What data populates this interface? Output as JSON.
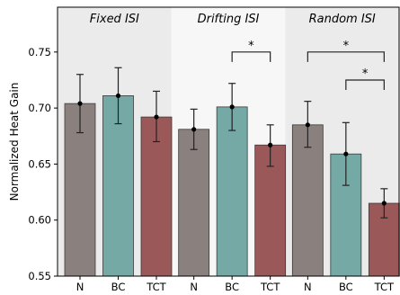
{
  "chart_data": {
    "type": "bar",
    "ylabel": "Normalized Heat Gain",
    "xlabel": "",
    "ylim": [
      0.55,
      0.79
    ],
    "yticks": [
      "0.55",
      "0.60",
      "0.65",
      "0.70",
      "0.75"
    ],
    "grid": false,
    "groups": [
      {
        "label": "Fixed ISI",
        "background": "#ebebeb",
        "bars": [
          {
            "category": "N",
            "value": 0.704,
            "err_low": 0.678,
            "err_high": 0.73
          },
          {
            "category": "BC",
            "value": 0.711,
            "err_low": 0.686,
            "err_high": 0.736
          },
          {
            "category": "TCT",
            "value": 0.692,
            "err_low": 0.67,
            "err_high": 0.715
          }
        ],
        "significance": []
      },
      {
        "label": "Drifting ISI",
        "background": "#f7f7f7",
        "bars": [
          {
            "category": "N",
            "value": 0.681,
            "err_low": 0.663,
            "err_high": 0.699
          },
          {
            "category": "BC",
            "value": 0.701,
            "err_low": 0.68,
            "err_high": 0.722
          },
          {
            "category": "TCT",
            "value": 0.667,
            "err_low": 0.648,
            "err_high": 0.685
          }
        ],
        "significance": [
          {
            "from": 1,
            "to": 2,
            "label": "*",
            "y": 0.75
          }
        ]
      },
      {
        "label": "Random ISI",
        "background": "#ebebeb",
        "bars": [
          {
            "category": "N",
            "value": 0.685,
            "err_low": 0.665,
            "err_high": 0.706
          },
          {
            "category": "BC",
            "value": 0.659,
            "err_low": 0.631,
            "err_high": 0.687
          },
          {
            "category": "TCT",
            "value": 0.615,
            "err_low": 0.602,
            "err_high": 0.628
          }
        ],
        "significance": [
          {
            "from": 0,
            "to": 2,
            "label": "*",
            "y": 0.75
          },
          {
            "from": 1,
            "to": 2,
            "label": "*",
            "y": 0.725
          }
        ]
      }
    ],
    "colors": {
      "N": "#8a807e",
      "BC": "#75a9a6",
      "TCT": "#9a5958"
    }
  }
}
